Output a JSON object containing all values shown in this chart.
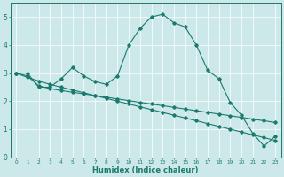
{
  "xlabel": "Humidex (Indice chaleur)",
  "background_color": "#cce8e8",
  "grid_color": "#ffffff",
  "line_color": "#1a7a6e",
  "xlim": [
    -0.5,
    23.5
  ],
  "ylim": [
    0,
    5.5
  ],
  "yticks": [
    0,
    1,
    2,
    3,
    4,
    5
  ],
  "xticks": [
    0,
    1,
    2,
    3,
    4,
    5,
    6,
    7,
    8,
    9,
    10,
    11,
    12,
    13,
    14,
    15,
    16,
    17,
    18,
    19,
    20,
    21,
    22,
    23
  ],
  "line1_x": [
    0,
    1,
    2,
    3,
    4,
    5,
    6,
    7,
    8,
    9,
    10,
    11,
    12,
    13,
    14,
    15,
    16,
    17,
    18,
    19,
    20,
    21,
    22,
    23
  ],
  "line1_y": [
    3.0,
    3.0,
    2.5,
    2.5,
    2.8,
    3.2,
    2.9,
    2.7,
    2.6,
    2.9,
    4.0,
    4.6,
    5.0,
    5.1,
    4.8,
    4.65,
    4.0,
    3.1,
    2.8,
    1.95,
    1.5,
    0.85,
    0.4,
    0.75
  ],
  "line2_x": [
    0,
    1,
    2,
    3,
    4,
    5,
    6,
    7,
    8,
    9,
    10,
    11,
    12,
    13,
    14,
    15,
    16,
    17,
    18,
    19,
    20,
    21,
    22,
    23
  ],
  "line2_y": [
    3.0,
    2.9,
    2.55,
    2.45,
    2.38,
    2.32,
    2.26,
    2.2,
    2.14,
    2.08,
    2.02,
    1.96,
    1.9,
    1.84,
    1.78,
    1.72,
    1.66,
    1.6,
    1.54,
    1.48,
    1.42,
    1.36,
    1.3,
    1.24
  ],
  "line3_x": [
    0,
    1,
    2,
    3,
    4,
    5,
    6,
    7,
    8,
    9,
    10,
    11,
    12,
    13,
    14,
    15,
    16,
    17,
    18,
    19,
    20,
    21,
    22,
    23
  ],
  "line3_y": [
    3.0,
    2.85,
    2.72,
    2.6,
    2.5,
    2.4,
    2.3,
    2.2,
    2.1,
    2.0,
    1.9,
    1.8,
    1.7,
    1.6,
    1.5,
    1.4,
    1.3,
    1.2,
    1.1,
    1.0,
    0.9,
    0.8,
    0.7,
    0.6
  ]
}
